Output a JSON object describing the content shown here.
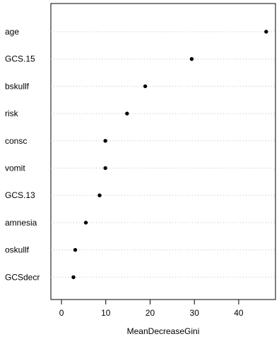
{
  "chart_data": {
    "type": "scatter",
    "title": "",
    "xlabel": "MeanDecreaseGini",
    "ylabel": "",
    "xlim": [
      -2.4,
      48.3
    ],
    "xticks": [
      0,
      10,
      20,
      30,
      40
    ],
    "grid": "dotted horizontal guide lines",
    "categories": [
      "age",
      "GCS.15",
      "bskullf",
      "risk",
      "consc",
      "vomit",
      "GCS.13",
      "amnesia",
      "oskullf",
      "GCSdecr"
    ],
    "values": [
      46.2,
      29.4,
      18.9,
      14.8,
      9.9,
      9.9,
      8.6,
      5.5,
      3.1,
      2.7
    ],
    "colors": {
      "point": "#000000",
      "guide": "#bebebe",
      "axis": "#000000"
    }
  }
}
